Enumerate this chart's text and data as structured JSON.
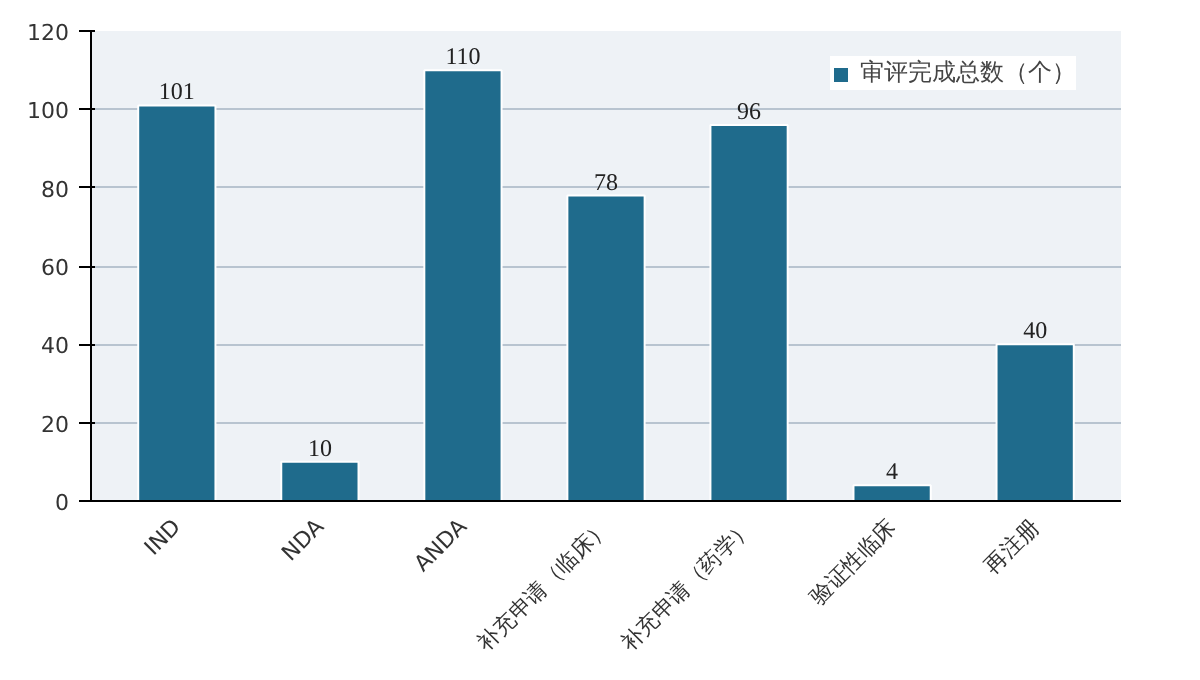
{
  "chart_data": {
    "type": "bar",
    "categories": [
      "IND",
      "NDA",
      "ANDA",
      "补充申请（临床）",
      "补充申请（药学）",
      "验证性临床",
      "再注册"
    ],
    "series": [
      {
        "name": "审评完成总数（个）",
        "color": "#1f6b8c",
        "values": [
          101,
          10,
          110,
          78,
          96,
          4,
          40
        ]
      }
    ],
    "ylim": [
      0,
      120
    ],
    "yticks": [
      0,
      20,
      40,
      60,
      80,
      100,
      120
    ],
    "grid": "y",
    "legend": "top",
    "data_labels": true
  }
}
